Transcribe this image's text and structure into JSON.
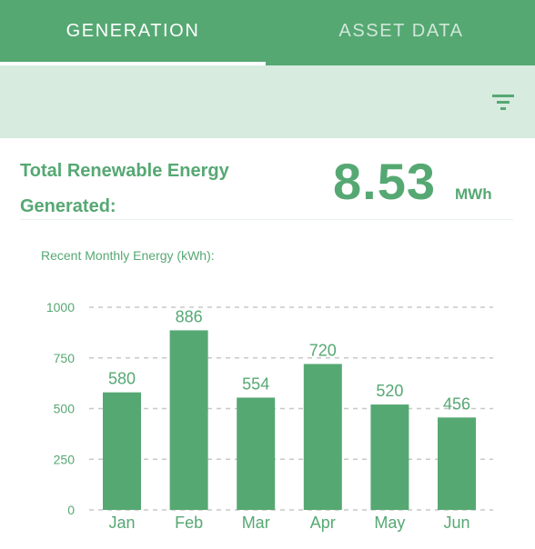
{
  "tabs": [
    {
      "label": "GENERATION",
      "active": true
    },
    {
      "label": "ASSET DATA",
      "active": false
    }
  ],
  "filter": {
    "icon": "filter-icon"
  },
  "total": {
    "label": "Total Renewable Energy Generated:",
    "value": "8.53",
    "unit": "MWh"
  },
  "colors": {
    "primary": "#56a873",
    "light": "#d7ebdf",
    "grid": "#c8c8c8",
    "axis_text": "#56a873"
  },
  "chart_data": {
    "type": "bar",
    "title": "Recent Monthly Energy (kWh):",
    "categories": [
      "Jan",
      "Feb",
      "Mar",
      "Apr",
      "May",
      "Jun"
    ],
    "values": [
      580,
      886,
      554,
      720,
      520,
      456
    ],
    "ylim": [
      0,
      1000
    ],
    "yticks": [
      0,
      250,
      500,
      750,
      1000
    ],
    "grid": true,
    "bar_color": "#56a873"
  }
}
